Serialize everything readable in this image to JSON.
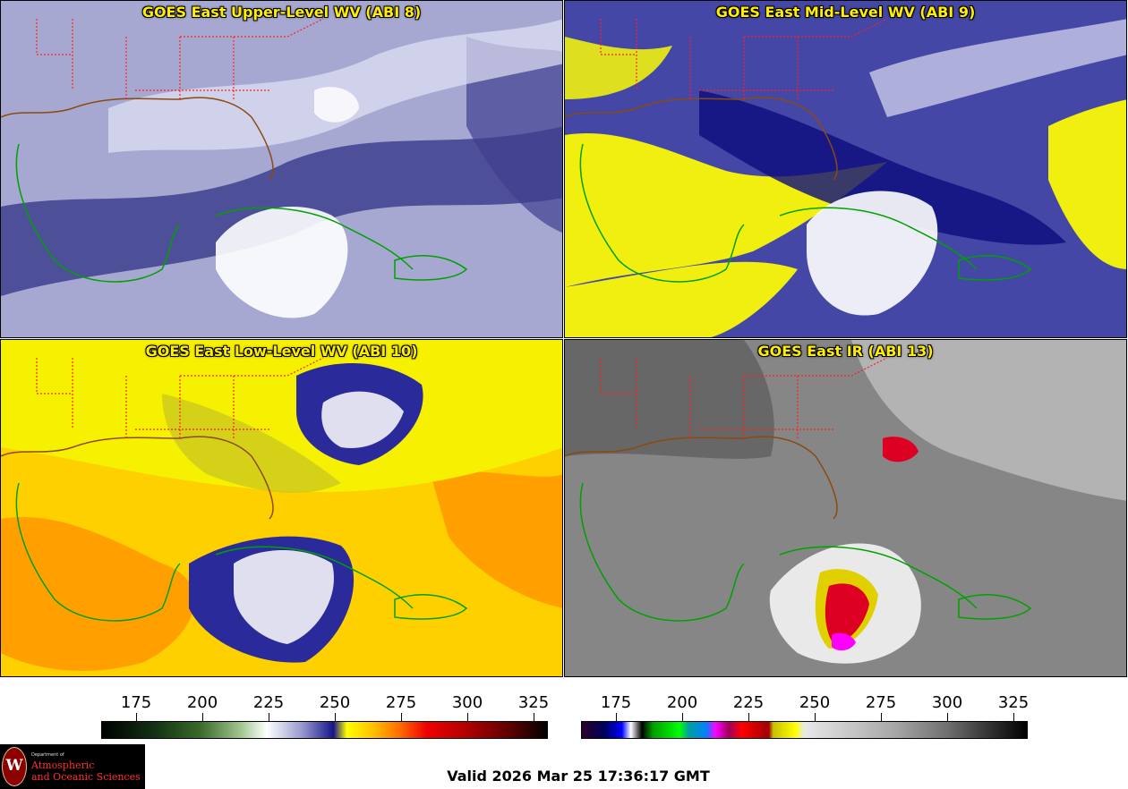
{
  "panels": [
    {
      "id": "upper",
      "title": "GOES East Upper-Level WV (ABI 8)",
      "colors": {
        "base": "#a6a8d2",
        "dark": "#3e3f8f",
        "light": "#e2e2f3",
        "cloud": "#ffffff"
      }
    },
    {
      "id": "mid",
      "title": "GOES East Mid-Level WV (ABI 9)",
      "colors": {
        "base": "#4447a6",
        "dark": "#0d0c7e",
        "yellow": "#f0ef10",
        "light": "#dcdcf2",
        "cloud": "#ffffff"
      }
    },
    {
      "id": "low",
      "title": "GOES East Low-Level WV (ABI 10)",
      "colors": {
        "base": "#ffd000",
        "orange": "#ff9a00",
        "yellow": "#f6f100",
        "olive": "#c6c322",
        "blue": "#2a2a9a",
        "cloud": "#ffffff"
      }
    },
    {
      "id": "ir",
      "title": "GOES East IR (ABI 13)",
      "colors": {
        "base": "#868686",
        "dark": "#5a5a5a",
        "light": "#d2d2d2",
        "cloud": "#f4f4f4",
        "yellow": "#e0d000",
        "red": "#dd0022",
        "magenta": "#ff00ff"
      }
    }
  ],
  "colorbars": [
    {
      "id": "wv",
      "ticks": [
        "175",
        "200",
        "225",
        "250",
        "275",
        "300",
        "325"
      ]
    },
    {
      "id": "ir",
      "ticks": [
        "175",
        "200",
        "225",
        "250",
        "275",
        "300",
        "325"
      ]
    }
  ],
  "map_colors": {
    "state_borders": "#ff2020",
    "coastlines": "#00a000",
    "us_coast": "#8a4a10"
  },
  "logo": {
    "dept": "Department of",
    "line1": "Atmospheric",
    "line2": "and Oceanic Sciences",
    "seal_letter": "W"
  },
  "valid_text": "Valid 2026 Mar 25 17:36:17 GMT"
}
